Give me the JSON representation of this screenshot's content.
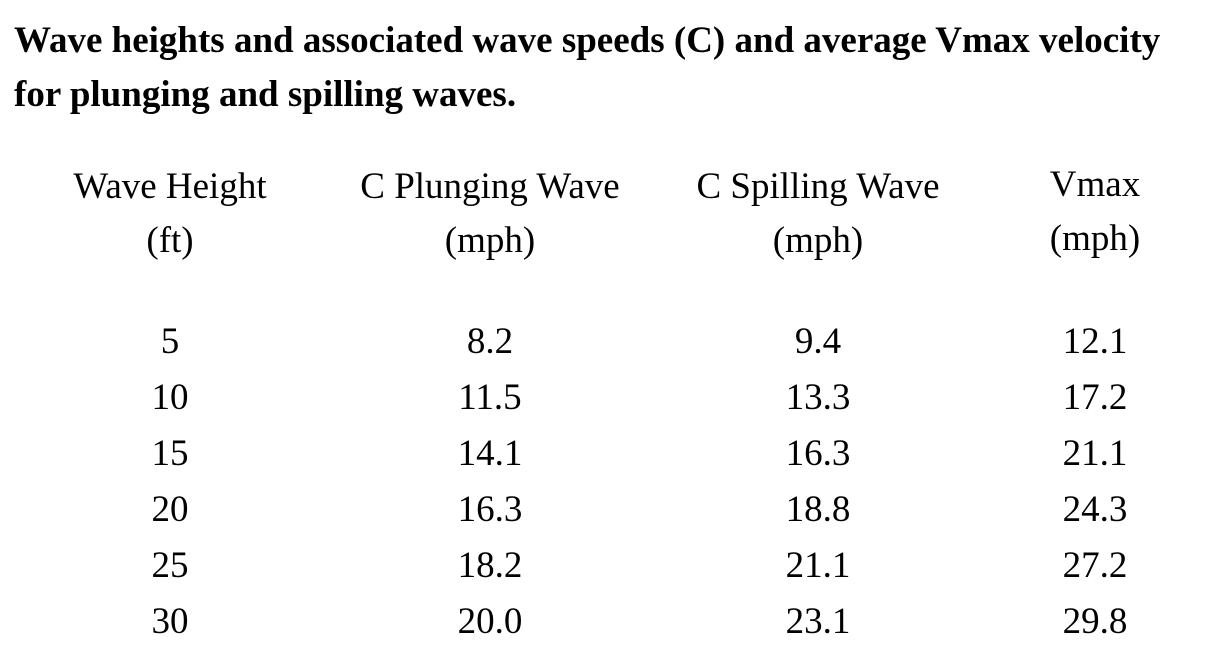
{
  "document": {
    "title": "Wave heights and associated wave speeds (C) and average Vmax velocity for plunging and spilling waves."
  },
  "table": {
    "columns": [
      {
        "line1": "Wave Height",
        "line2": "(ft)"
      },
      {
        "line1": "C Plunging Wave",
        "line2": "(mph)"
      },
      {
        "line1": "C Spilling Wave",
        "line2": "(mph)"
      },
      {
        "line1": "Vmax",
        "line2": "(mph)"
      }
    ],
    "rows": [
      [
        "5",
        "8.2",
        "9.4",
        "12.1"
      ],
      [
        "10",
        "11.5",
        "13.3",
        "17.2"
      ],
      [
        "15",
        "14.1",
        "16.3",
        "21.1"
      ],
      [
        "20",
        "16.3",
        "18.8",
        "24.3"
      ],
      [
        "25",
        "18.2",
        "21.1",
        "27.2"
      ],
      [
        "30",
        "20.0",
        "23.1",
        "29.8"
      ]
    ]
  }
}
